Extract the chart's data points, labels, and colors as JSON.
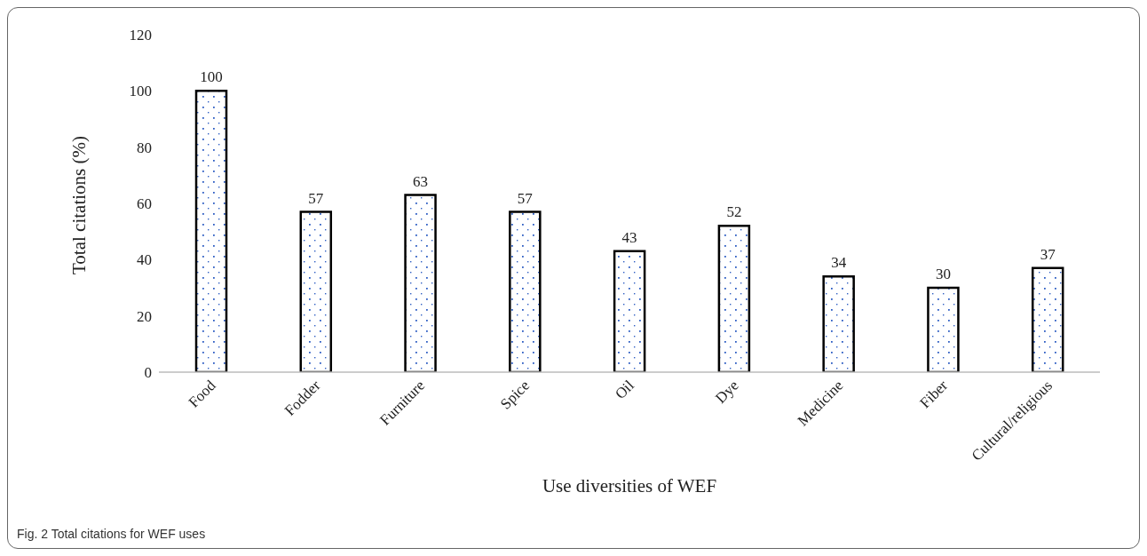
{
  "chart_data": {
    "type": "bar",
    "xlabel": "Use diversities  of WEF",
    "ylabel": "Total citations  (%)",
    "categories": [
      "Food",
      "Fodder",
      "Furniture",
      "Spice",
      "Oil",
      "Dye",
      "Medicine",
      "Fiber",
      "Cultural/religious"
    ],
    "values": [
      100,
      57,
      63,
      57,
      43,
      52,
      34,
      30,
      37
    ],
    "color": "#000000",
    "ylim": [
      0,
      120
    ],
    "yticks": [
      0,
      20,
      40,
      60,
      80,
      100,
      120
    ],
    "grid": false,
    "data_labels": true,
    "annotations": [
      "Fig. 2  Total citations for WEF uses"
    ]
  }
}
